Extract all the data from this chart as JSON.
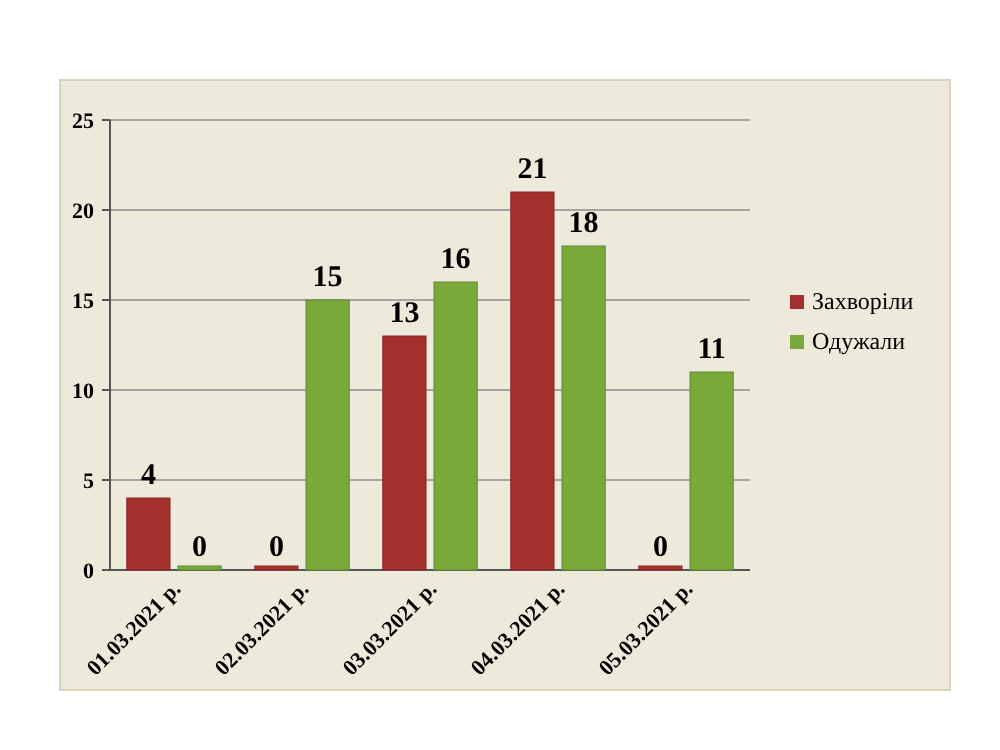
{
  "chart_data": {
    "type": "bar",
    "categories": [
      "01.03.2021 р.",
      "02.03.2021 р.",
      "03.03.2021 р.",
      "04.03.2021 р.",
      "05.03.2021 р."
    ],
    "series": [
      {
        "name": "Захворіли",
        "color": "#a3302c",
        "values": [
          4,
          0,
          13,
          21,
          0
        ]
      },
      {
        "name": "Одужали",
        "color": "#7aa83a",
        "values": [
          0,
          15,
          16,
          18,
          11
        ]
      }
    ],
    "ylim": [
      0,
      25
    ],
    "yticks": [
      0,
      5,
      10,
      15,
      20,
      25
    ],
    "grid": "y",
    "legend": "right",
    "data_labels": true
  }
}
